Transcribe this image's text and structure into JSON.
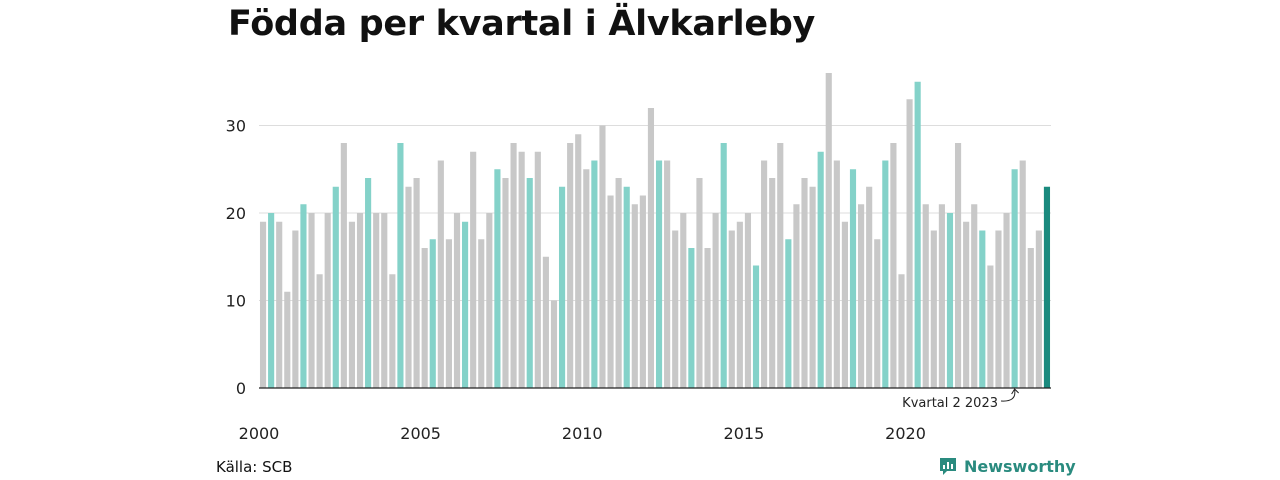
{
  "title": "Födda per kvartal i Älvkarleby",
  "source": "Källa: SCB",
  "brand": {
    "name": "Newsworthy",
    "icon": "newsworthy-logo-icon"
  },
  "colors": {
    "highlight": "#84d2c9",
    "base": "#c8c8c8",
    "latest": "#1a8a7e",
    "grid": "#dddddd"
  },
  "chart_data": {
    "type": "bar",
    "title": "Födda per kvartal i Älvkarleby",
    "xlabel": "",
    "ylabel": "",
    "ylim": [
      0,
      36
    ],
    "yticks": [
      0,
      10,
      20,
      30
    ],
    "xtick_labels": [
      "2000",
      "2005",
      "2010",
      "2015",
      "2020"
    ],
    "highlight_quarter": 2,
    "annotation": "Kvartal 2 2023",
    "series": [
      {
        "values": [
          19,
          20,
          19,
          11,
          18,
          21,
          20,
          13,
          20,
          23,
          28,
          19,
          20,
          24,
          20,
          20,
          13,
          28,
          23,
          24,
          16,
          17,
          26,
          17,
          20,
          19,
          27,
          17,
          20,
          25,
          24,
          28,
          27,
          24,
          27,
          15,
          10,
          23,
          28,
          29,
          25,
          26,
          30,
          22,
          24,
          23,
          21,
          22,
          32,
          26,
          26,
          18,
          20,
          16,
          24,
          16,
          20,
          28,
          18,
          19,
          20,
          14,
          26,
          24,
          28,
          17,
          21,
          24,
          23,
          27,
          36,
          26,
          19,
          25,
          21,
          23,
          17,
          26,
          28,
          13,
          33,
          35,
          21,
          18,
          21,
          20,
          28,
          19,
          21,
          18,
          14,
          18,
          20,
          25,
          26,
          16,
          18,
          23
        ]
      }
    ]
  }
}
